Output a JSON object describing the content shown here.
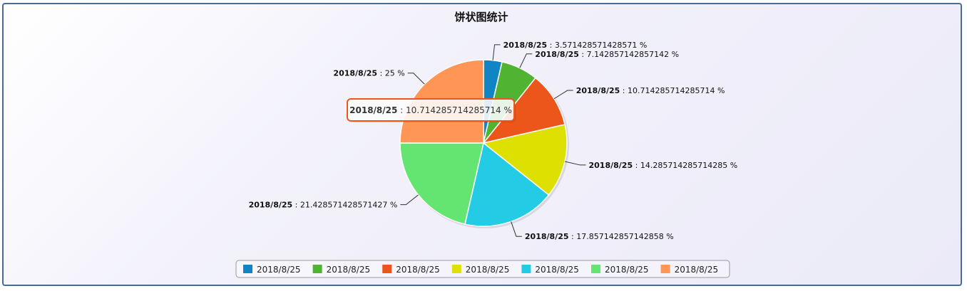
{
  "chart_data": {
    "type": "pie",
    "title": "饼状图统计",
    "unit": "%",
    "slices": [
      {
        "name": "2018/8/25",
        "value": 3.571428571428571,
        "label": "3.571428571428571",
        "color": "#1084c4"
      },
      {
        "name": "2018/8/25",
        "value": 7.142857142857142,
        "label": "7.142857142857142",
        "color": "#50b432"
      },
      {
        "name": "2018/8/25",
        "value": 10.714285714285714,
        "label": "10.714285714285714",
        "color": "#ed561b"
      },
      {
        "name": "2018/8/25",
        "value": 14.285714285714285,
        "label": "14.285714285714285",
        "color": "#dde000"
      },
      {
        "name": "2018/8/25",
        "value": 17.857142857142858,
        "label": "17.857142857142858",
        "color": "#24cbe5"
      },
      {
        "name": "2018/8/25",
        "value": 21.428571428571427,
        "label": "21.428571428571427",
        "color": "#64e572"
      },
      {
        "name": "2018/8/25",
        "value": 25,
        "label": "25",
        "color": "#ff9655"
      }
    ],
    "legend_position": "bottom",
    "tooltip": {
      "name": "2018/8/25",
      "label": "10.714285714285714",
      "border_color": "#ed561b"
    }
  }
}
